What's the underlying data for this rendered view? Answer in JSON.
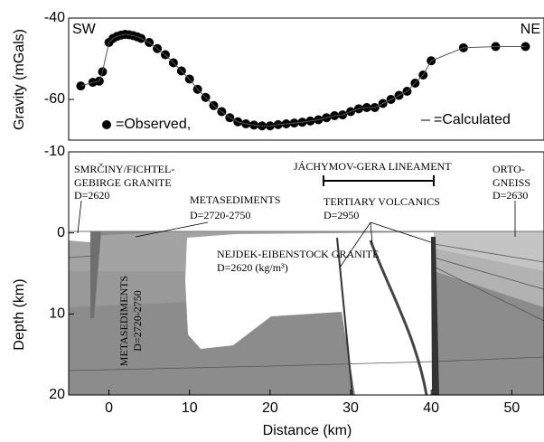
{
  "chart_data": [
    {
      "type": "scatter-line",
      "y_label": "Gravity (mGals)",
      "annotations": [
        "SW",
        "NE"
      ],
      "ylim": [
        -70,
        -40
      ],
      "yticks": [
        -40,
        -60
      ],
      "xlim": [
        -5,
        54
      ],
      "x": [
        -3.5,
        -2,
        -1.2,
        -0.8,
        0,
        0.5,
        1,
        1.5,
        2,
        2.5,
        3,
        3.5,
        4,
        5,
        6,
        7,
        8,
        9,
        10,
        11,
        12,
        13,
        14,
        15,
        16,
        17,
        18,
        19,
        20,
        21,
        22,
        23,
        24,
        25,
        26,
        27,
        28,
        29,
        30,
        31,
        32,
        33,
        34,
        35,
        36,
        37,
        38,
        39,
        40,
        44,
        48,
        51.7
      ],
      "series": [
        {
          "name": "=Observed,",
          "color": "#000000",
          "marker": "dot",
          "values": [
            -56.7,
            -55.8,
            -55.5,
            -53.2,
            -46,
            -45,
            -44.5,
            -44.2,
            -44,
            -44.1,
            -44.3,
            -44.6,
            -45,
            -46,
            -47.5,
            -49,
            -51,
            -53,
            -55,
            -57.5,
            -59.5,
            -61.5,
            -63,
            -64.5,
            -65.5,
            -66,
            -66.3,
            -66.5,
            -66.5,
            -66.2,
            -66,
            -65.8,
            -65.6,
            -65.3,
            -65,
            -64.5,
            -64,
            -63.8,
            -63,
            -62.3,
            -62,
            -62,
            -61,
            -60,
            -59,
            -58,
            -56,
            -54,
            -50.5,
            -47.3,
            -47,
            -47
          ]
        },
        {
          "name": "=Calculated",
          "color": "#555555",
          "marker": "line",
          "values": [
            -56.7,
            -55.8,
            -55.5,
            -53.2,
            -46,
            -45,
            -44.5,
            -44.2,
            -44,
            -44.1,
            -44.3,
            -44.6,
            -45,
            -46,
            -47.5,
            -49,
            -51,
            -53,
            -55,
            -57.5,
            -59.5,
            -61.5,
            -63,
            -64.5,
            -65.5,
            -66,
            -66.3,
            -66.5,
            -66.5,
            -66.2,
            -66,
            -65.8,
            -65.6,
            -65.3,
            -65,
            -64.5,
            -64,
            -63.8,
            -63,
            -62.3,
            -62,
            -62,
            -61,
            -60,
            -59,
            -58,
            -56,
            -54,
            -50.5,
            -47.3,
            -47,
            -47
          ]
        }
      ]
    },
    {
      "type": "cross-section",
      "x_label": "Distance (km)",
      "y_label": "Depth (km)",
      "xlim": [
        -5,
        54
      ],
      "xticks": [
        0,
        10,
        20,
        30,
        40,
        50
      ],
      "ylim": [
        -10,
        20
      ],
      "yticks": [
        -10,
        0,
        10,
        20
      ],
      "y_inverted": true,
      "annotations": [
        "SMRČINY/FICHTEL-",
        "GEBIRGE GRANITE",
        "D=2620",
        "METASEDIMENTS",
        "D=2720-2750",
        "JÁCHYMOV-GERA LINEAMENT",
        "TERTIARY VOLCANICS",
        "D=2950",
        "ORTO-",
        "GNEISS",
        "D=2630",
        "NEJDEK-EIBENSTOCK GRANITE",
        "D=2620 (kg/m³)",
        "METASEDIMENTS",
        "D=2720-2750"
      ]
    }
  ]
}
